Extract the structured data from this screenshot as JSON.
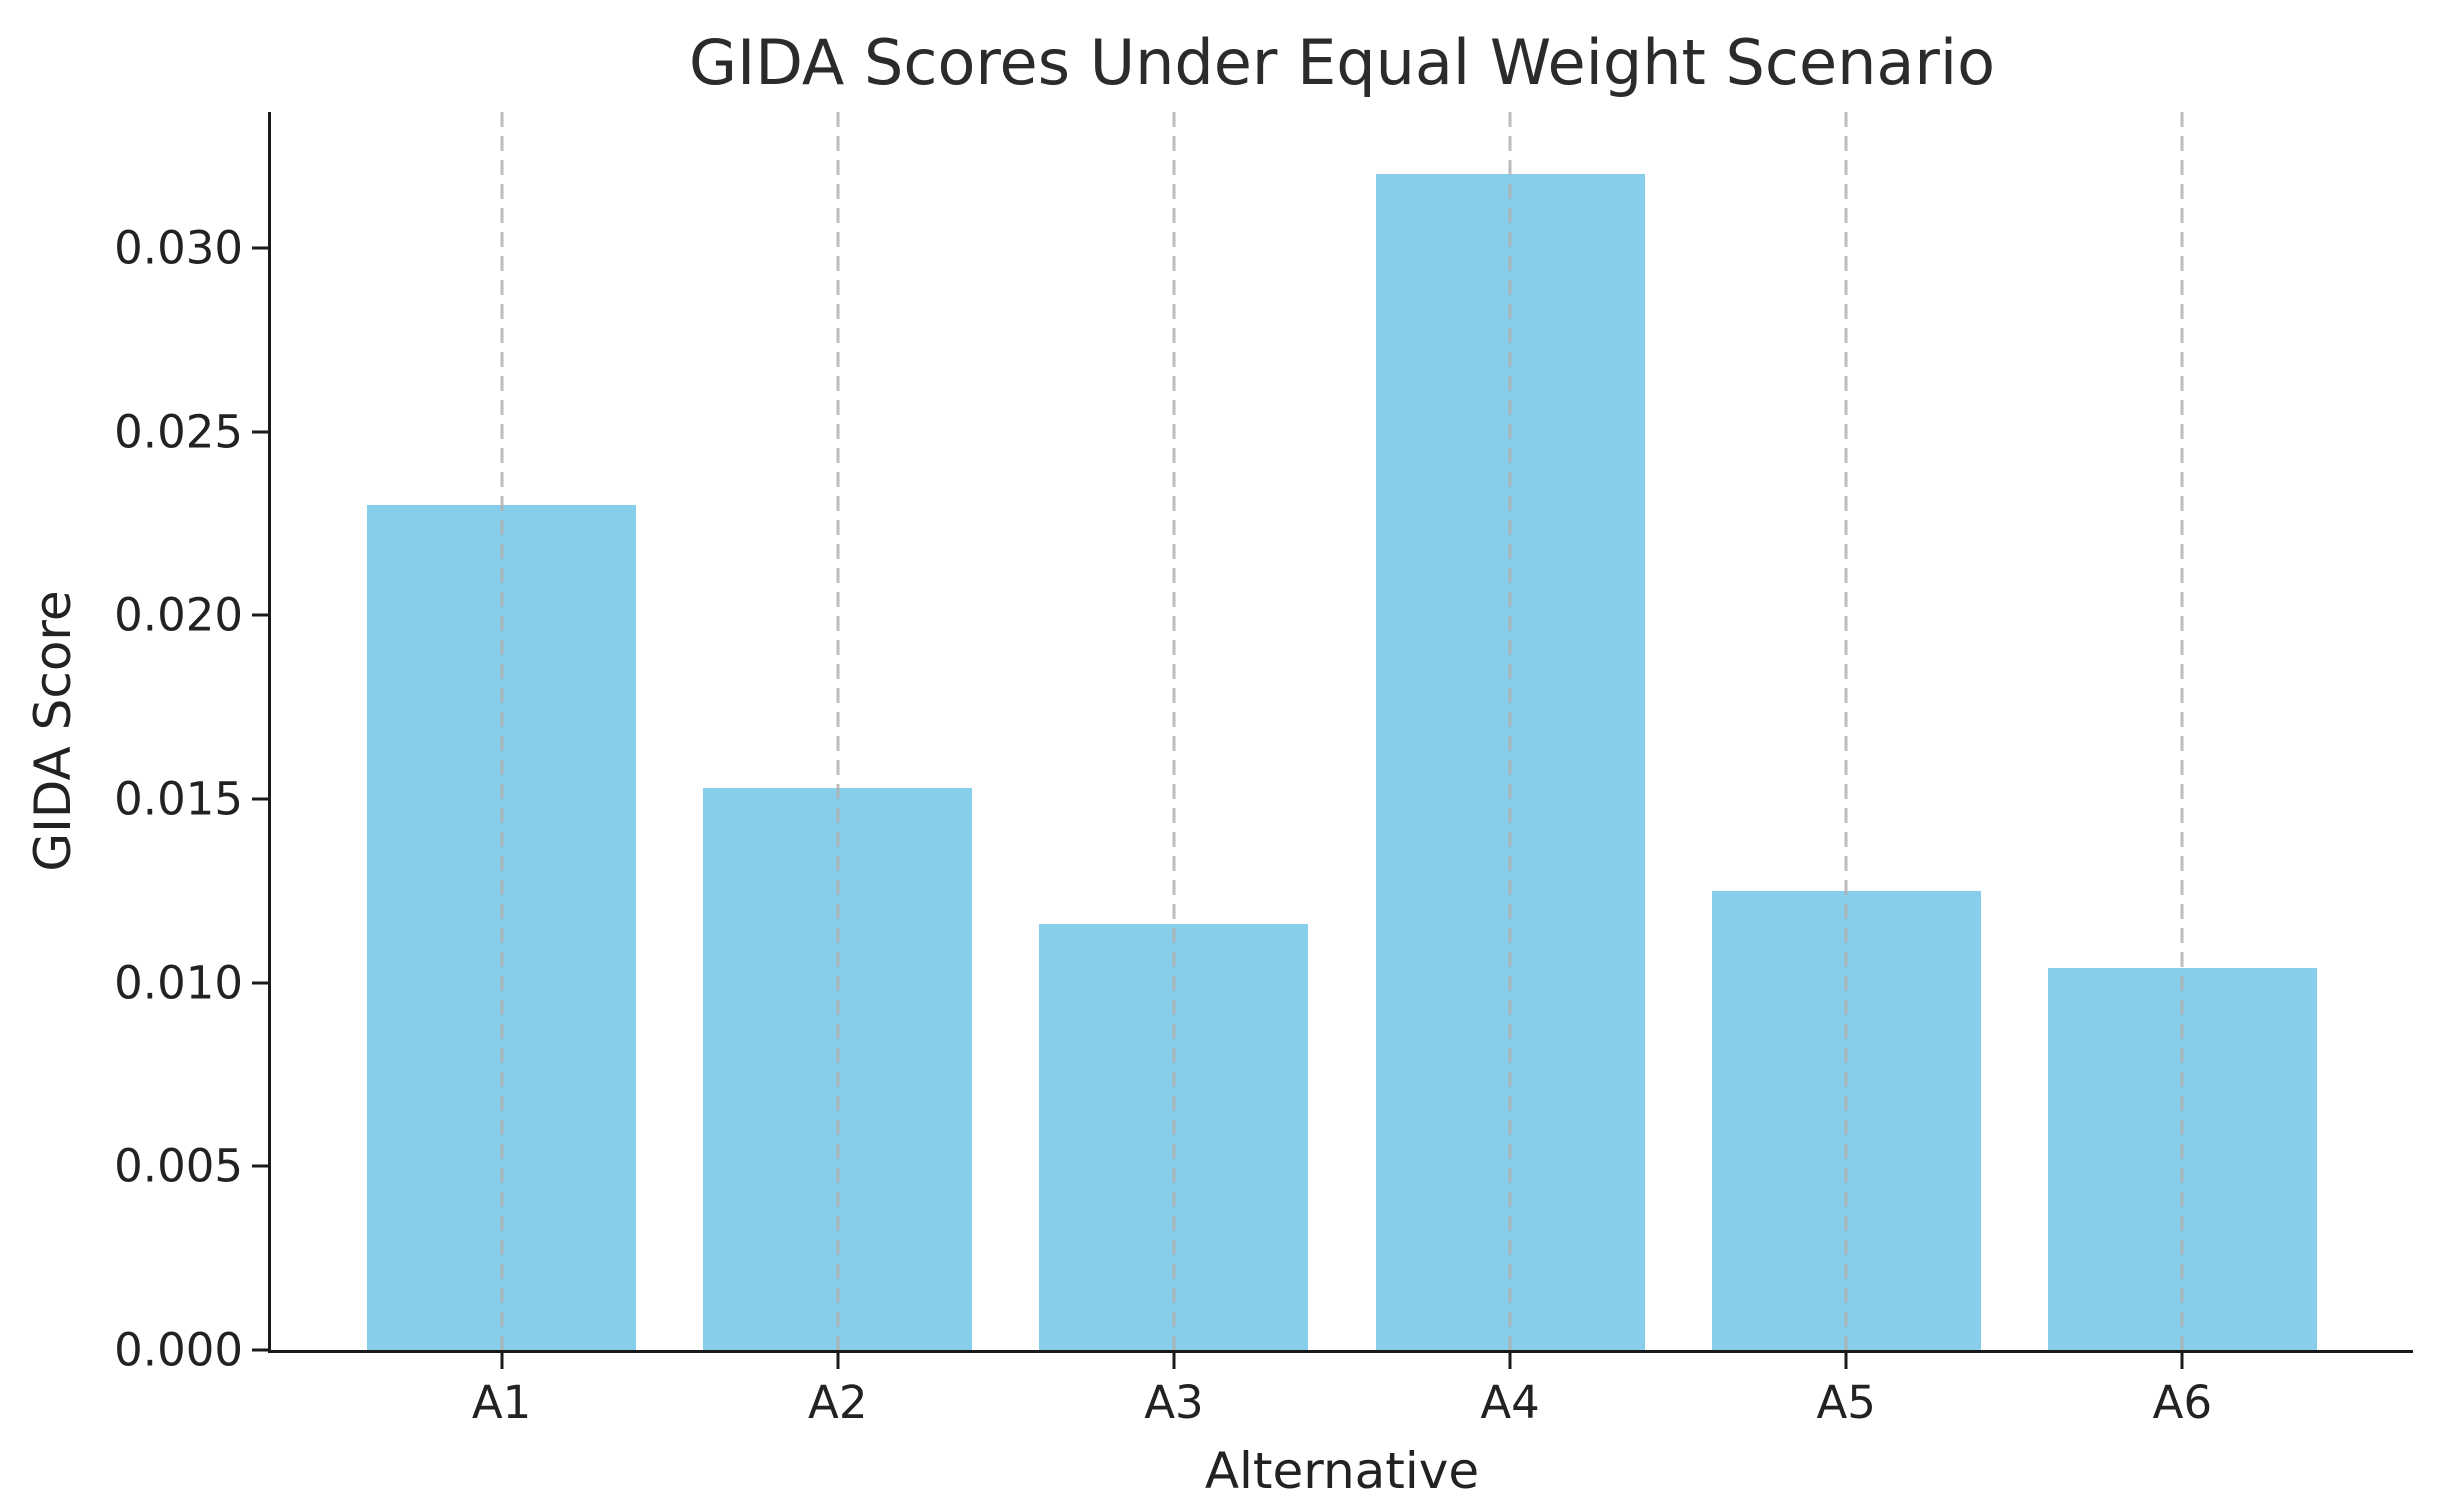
{
  "chart_data": {
    "type": "bar",
    "title": "GIDA Scores Under Equal Weight Scenario",
    "xlabel": "Alternative",
    "ylabel": "GIDA Score",
    "categories": [
      "A1",
      "A2",
      "A3",
      "A4",
      "A5",
      "A6"
    ],
    "values": [
      0.023,
      0.0153,
      0.0116,
      0.032,
      0.0125,
      0.0104
    ],
    "yticks": [
      0.0,
      0.005,
      0.01,
      0.015,
      0.02,
      0.025,
      0.03
    ],
    "ytick_labels": [
      "0.000",
      "0.005",
      "0.010",
      "0.015",
      "0.020",
      "0.025",
      "0.030"
    ],
    "ylim": [
      0,
      0.0337
    ],
    "bar_color": "#87CEEB",
    "grid": "vertical-dashed-at-category-centers-over-bars",
    "grid_color": "#b0b0b0",
    "spine_color": "#1a1a1a",
    "text_color": "#222222",
    "legend": "none",
    "bar_width_fraction": 0.8,
    "x_margin_units": 0.686
  }
}
